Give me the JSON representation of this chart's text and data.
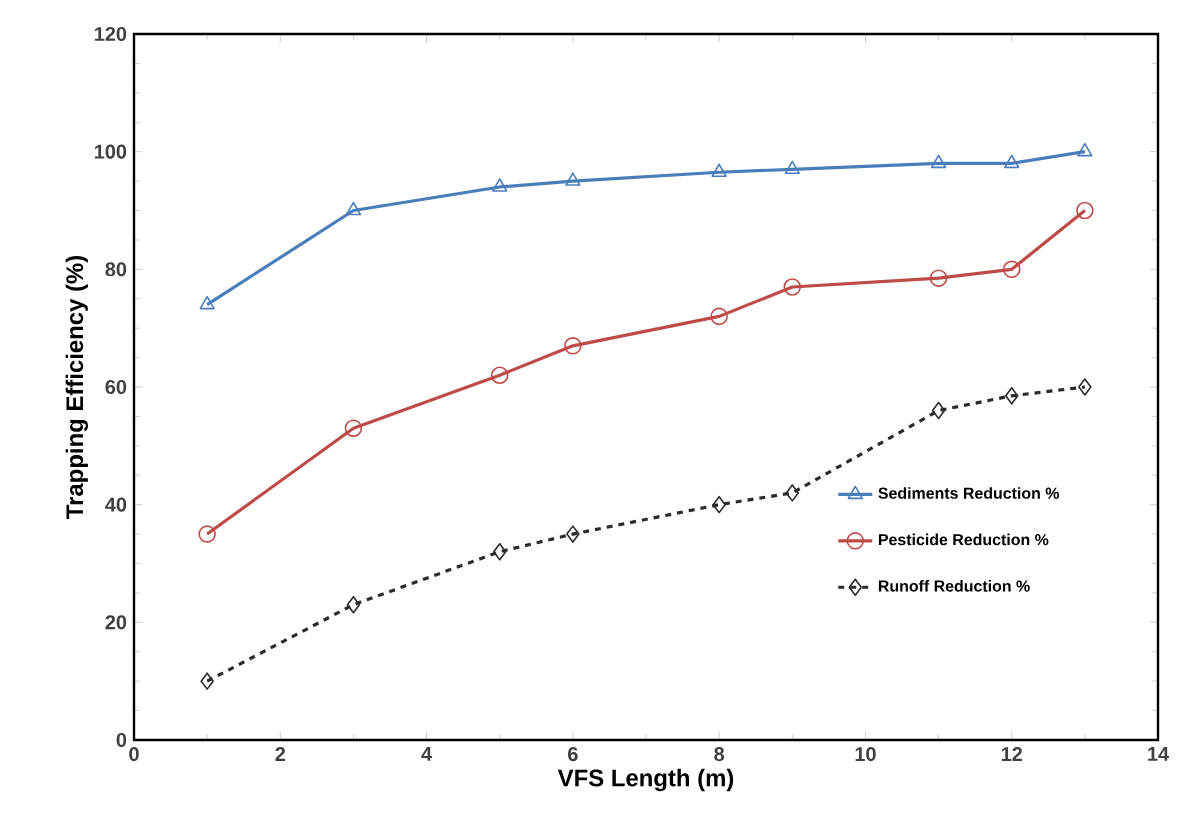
{
  "chart_data": {
    "type": "line",
    "xlabel": "VFS Length (m)",
    "ylabel": "Trapping Efficiency (%)",
    "x": [
      1,
      3,
      5,
      6,
      8,
      9,
      11,
      12,
      13
    ],
    "series": [
      {
        "name": "Sediments Reduction %",
        "color": "#4a7ebb",
        "marker": "triangle",
        "line_style": "solid",
        "values": [
          74,
          90,
          94,
          95,
          96.5,
          97,
          98,
          98,
          100
        ]
      },
      {
        "name": "Pesticide Reduction %",
        "color": "#be4b48",
        "marker": "circle",
        "line_style": "solid",
        "values": [
          35,
          53,
          62,
          67,
          72,
          77,
          78.5,
          80,
          90
        ]
      },
      {
        "name": "Runoff Reduction %",
        "color": "#2b2b2b",
        "marker": "diamond",
        "line_style": "dashed",
        "values": [
          10,
          23,
          32,
          35,
          40,
          42,
          56,
          58.5,
          60
        ]
      }
    ],
    "xlim": [
      0,
      14
    ],
    "xticks": [
      0,
      2,
      4,
      6,
      8,
      10,
      12,
      14
    ],
    "ylim": [
      0,
      120
    ],
    "yticks": [
      0,
      20,
      40,
      60,
      80,
      100,
      120
    ],
    "grid": false,
    "legend": "right"
  }
}
